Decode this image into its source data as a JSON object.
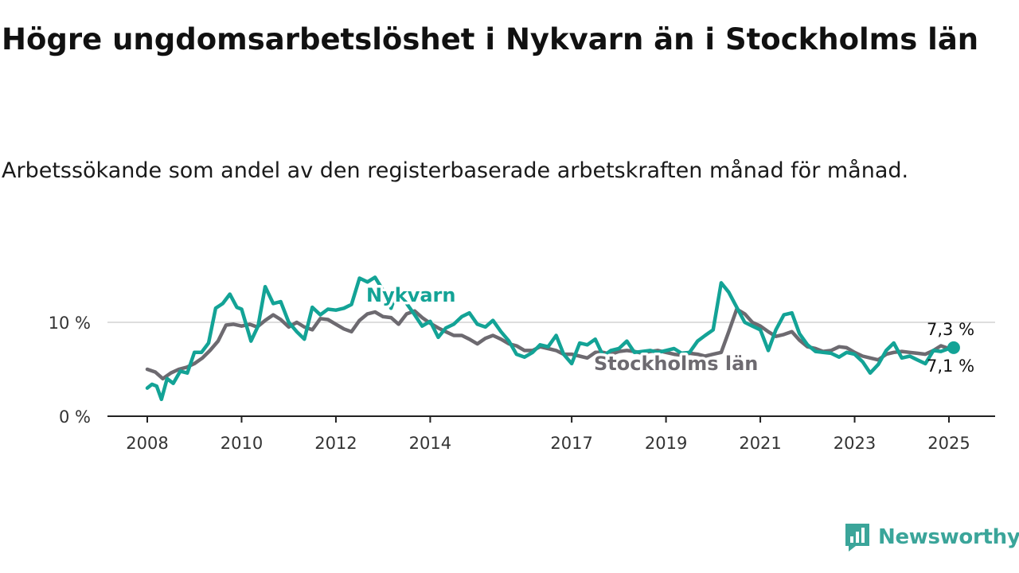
{
  "title": "Högre ungdomsarbetslöshet i Nykvarn än i Stockholms län",
  "subtitle": "Arbetssökande som andel av den registerbaserade arbetskraften månad för månad.",
  "brand": {
    "name": "Newsworthy",
    "icon": "newsworthy-logo-icon",
    "color": "#3ba59a"
  },
  "chart_data": {
    "type": "line",
    "ylim": [
      0,
      16
    ],
    "grid": true,
    "y_ticks": [
      {
        "value": 0,
        "label": "0 %"
      },
      {
        "value": 10,
        "label": "10 %"
      }
    ],
    "x_ticks": [
      {
        "value": 2008,
        "label": "2008"
      },
      {
        "value": 2010,
        "label": "2010"
      },
      {
        "value": 2012,
        "label": "2012"
      },
      {
        "value": 2014,
        "label": "2014"
      },
      {
        "value": 2017,
        "label": "2017"
      },
      {
        "value": 2019,
        "label": "2019"
      },
      {
        "value": 2021,
        "label": "2021"
      },
      {
        "value": 2023,
        "label": "2023"
      },
      {
        "value": 2025,
        "label": "2025"
      }
    ],
    "series": [
      {
        "name": "Stockholms län",
        "color": "#6d6a70",
        "end_label": "7,1 %",
        "x": [
          2008.0,
          2008.17,
          2008.33,
          2008.5,
          2008.67,
          2008.83,
          2009.0,
          2009.17,
          2009.33,
          2009.5,
          2009.67,
          2009.83,
          2010.0,
          2010.17,
          2010.33,
          2010.5,
          2010.67,
          2010.83,
          2011.0,
          2011.17,
          2011.33,
          2011.5,
          2011.67,
          2011.83,
          2012.0,
          2012.17,
          2012.33,
          2012.5,
          2012.67,
          2012.83,
          2013.0,
          2013.17,
          2013.33,
          2013.5,
          2013.67,
          2013.83,
          2014.0,
          2014.17,
          2014.33,
          2014.5,
          2014.67,
          2014.83,
          2015.0,
          2015.17,
          2015.33,
          2015.5,
          2015.67,
          2015.83,
          2016.0,
          2016.17,
          2016.33,
          2016.5,
          2016.67,
          2016.83,
          2017.0,
          2017.17,
          2017.33,
          2017.5,
          2017.67,
          2017.83,
          2018.0,
          2018.17,
          2018.33,
          2018.5,
          2018.67,
          2018.83,
          2019.0,
          2019.17,
          2019.33,
          2019.5,
          2019.67,
          2019.83,
          2020.0,
          2020.17,
          2020.33,
          2020.5,
          2020.67,
          2020.83,
          2021.0,
          2021.17,
          2021.33,
          2021.5,
          2021.67,
          2021.83,
          2022.0,
          2022.17,
          2022.33,
          2022.5,
          2022.67,
          2022.83,
          2023.0,
          2023.17,
          2023.33,
          2023.5,
          2023.67,
          2023.83,
          2024.0,
          2024.17,
          2024.33,
          2024.5,
          2024.67,
          2024.83,
          2025.0,
          2025.1
        ],
        "y": [
          5.0,
          4.7,
          4.0,
          4.6,
          5.0,
          5.2,
          5.6,
          6.2,
          7.0,
          8.0,
          9.7,
          9.8,
          9.6,
          9.8,
          9.5,
          10.2,
          10.8,
          10.3,
          9.5,
          10.0,
          9.5,
          9.2,
          10.4,
          10.3,
          9.8,
          9.3,
          9.0,
          10.2,
          10.9,
          11.1,
          10.6,
          10.5,
          9.8,
          10.9,
          11.2,
          10.5,
          9.9,
          9.4,
          9.0,
          8.6,
          8.6,
          8.2,
          7.7,
          8.3,
          8.6,
          8.2,
          7.7,
          7.5,
          7.0,
          7.0,
          7.4,
          7.2,
          7.0,
          6.6,
          6.6,
          6.4,
          6.2,
          6.8,
          6.8,
          6.6,
          6.9,
          7.0,
          6.9,
          6.7,
          6.9,
          7.0,
          6.8,
          6.6,
          6.5,
          6.7,
          6.6,
          6.4,
          6.6,
          6.8,
          9.0,
          11.4,
          10.9,
          10.0,
          9.6,
          9.0,
          8.5,
          8.7,
          9.0,
          8.1,
          7.4,
          7.2,
          6.9,
          7.0,
          7.4,
          7.3,
          6.8,
          6.4,
          6.2,
          6.0,
          6.6,
          6.8,
          6.9,
          6.8,
          6.7,
          6.6,
          7.0,
          7.5,
          7.2,
          7.1
        ]
      },
      {
        "name": "Nykvarn",
        "color": "#13a396",
        "end_label": "7,3 %",
        "x": [
          2008.0,
          2008.1,
          2008.2,
          2008.3,
          2008.42,
          2008.55,
          2008.7,
          2008.85,
          2009.0,
          2009.15,
          2009.3,
          2009.45,
          2009.6,
          2009.75,
          2009.9,
          2010.0,
          2010.2,
          2010.35,
          2010.5,
          2010.67,
          2010.83,
          2011.0,
          2011.17,
          2011.33,
          2011.5,
          2011.67,
          2011.83,
          2012.0,
          2012.17,
          2012.33,
          2012.5,
          2012.67,
          2012.83,
          2013.0,
          2013.17,
          2013.33,
          2013.5,
          2013.67,
          2013.83,
          2014.0,
          2014.17,
          2014.33,
          2014.5,
          2014.67,
          2014.83,
          2015.0,
          2015.17,
          2015.33,
          2015.5,
          2015.67,
          2015.83,
          2016.0,
          2016.17,
          2016.33,
          2016.5,
          2016.67,
          2016.83,
          2017.0,
          2017.17,
          2017.33,
          2017.5,
          2017.67,
          2017.83,
          2018.0,
          2018.17,
          2018.33,
          2018.5,
          2018.67,
          2018.83,
          2019.0,
          2019.17,
          2019.33,
          2019.5,
          2019.67,
          2019.83,
          2020.0,
          2020.17,
          2020.33,
          2020.5,
          2020.67,
          2020.83,
          2021.0,
          2021.17,
          2021.33,
          2021.5,
          2021.67,
          2021.83,
          2022.0,
          2022.17,
          2022.33,
          2022.5,
          2022.67,
          2022.83,
          2023.0,
          2023.17,
          2023.33,
          2023.5,
          2023.67,
          2023.83,
          2024.0,
          2024.17,
          2024.33,
          2024.5,
          2024.67,
          2024.83,
          2025.0,
          2025.1
        ],
        "y": [
          3.0,
          3.4,
          3.2,
          1.8,
          4.0,
          3.5,
          4.8,
          4.6,
          6.8,
          6.8,
          7.8,
          11.5,
          12.0,
          13.0,
          11.6,
          11.4,
          8.0,
          9.6,
          13.8,
          12.0,
          12.2,
          10.0,
          9.0,
          8.2,
          11.6,
          10.8,
          11.4,
          11.3,
          11.5,
          11.9,
          14.7,
          14.3,
          14.8,
          13.4,
          11.5,
          13.8,
          12.0,
          10.8,
          9.6,
          10.1,
          8.4,
          9.4,
          9.8,
          10.6,
          11.0,
          9.8,
          9.5,
          10.2,
          9.0,
          8.0,
          6.6,
          6.3,
          6.8,
          7.6,
          7.4,
          8.6,
          6.6,
          5.6,
          7.8,
          7.6,
          8.2,
          6.4,
          7.0,
          7.2,
          8.0,
          6.8,
          6.9,
          7.0,
          6.8,
          7.0,
          7.2,
          6.7,
          6.8,
          8.0,
          8.6,
          9.2,
          14.2,
          13.2,
          11.6,
          10.0,
          9.6,
          9.2,
          7.0,
          9.2,
          10.8,
          11.0,
          8.8,
          7.6,
          6.9,
          6.8,
          6.7,
          6.3,
          6.8,
          6.6,
          5.8,
          4.6,
          5.5,
          7.0,
          7.8,
          6.2,
          6.4,
          6.0,
          5.6,
          7.0,
          6.9,
          7.2,
          7.3
        ]
      }
    ]
  }
}
